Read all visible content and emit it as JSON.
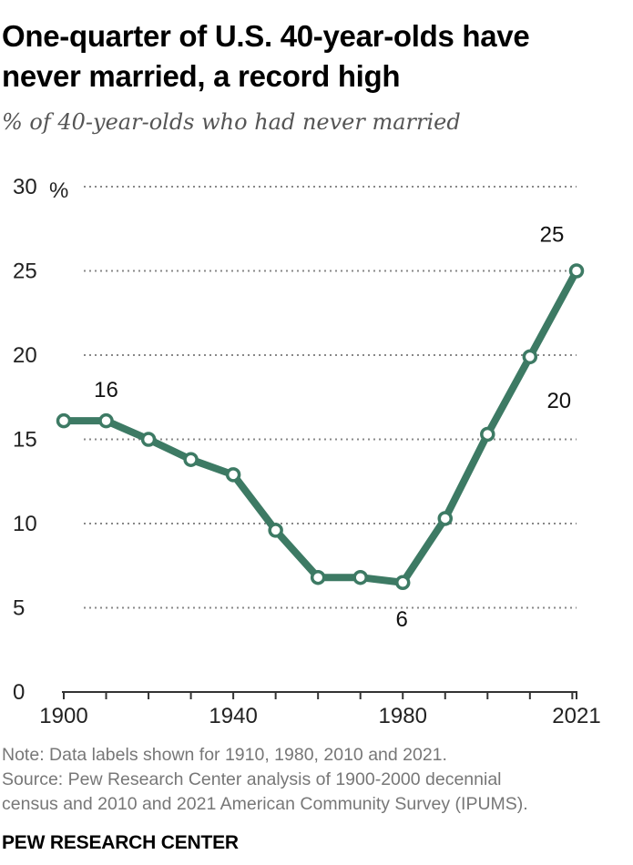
{
  "header": {
    "title_line1": "One-quarter of U.S. 40-year-olds have",
    "title_line2": "never married, a record high",
    "subtitle": "% of 40-year-olds who had never married"
  },
  "footer": {
    "note": "Note: Data labels shown for 1910, 1980, 2010 and 2021.",
    "source_line1": "Source: Pew Research Center analysis of 1900-2000 decennial",
    "source_line2": "census and 2010 and 2021 American Community Survey (IPUMS).",
    "brand": "PEW RESEARCH CENTER"
  },
  "chart_data": {
    "type": "line",
    "title": "One-quarter of U.S. 40-year-olds have never married, a record high",
    "subtitle": "% of 40-year-olds who had never married",
    "x": [
      1900,
      1910,
      1920,
      1930,
      1940,
      1950,
      1960,
      1970,
      1980,
      1990,
      2000,
      2010,
      2021
    ],
    "series": [
      {
        "values": [
          16.1,
          16.1,
          15.0,
          13.8,
          12.9,
          9.6,
          6.8,
          6.8,
          6.5,
          10.3,
          15.3,
          19.9,
          25.0
        ]
      }
    ],
    "xlim": [
      1900,
      2021
    ],
    "ylim": [
      0,
      30
    ],
    "x_ticks": [
      "1900",
      "1940",
      "1980",
      "2021"
    ],
    "y_ticks": [
      "0",
      "5",
      "10",
      "15",
      "20",
      "25",
      "30"
    ],
    "y_unit": "%",
    "data_labels": [
      {
        "x": 1910,
        "text": "16"
      },
      {
        "x": 1980,
        "text": "6"
      },
      {
        "x": 2010,
        "text": "20"
      },
      {
        "x": 2021,
        "text": "25"
      }
    ],
    "grid": "horizontal dotted",
    "line_color": "#3d7a64"
  }
}
